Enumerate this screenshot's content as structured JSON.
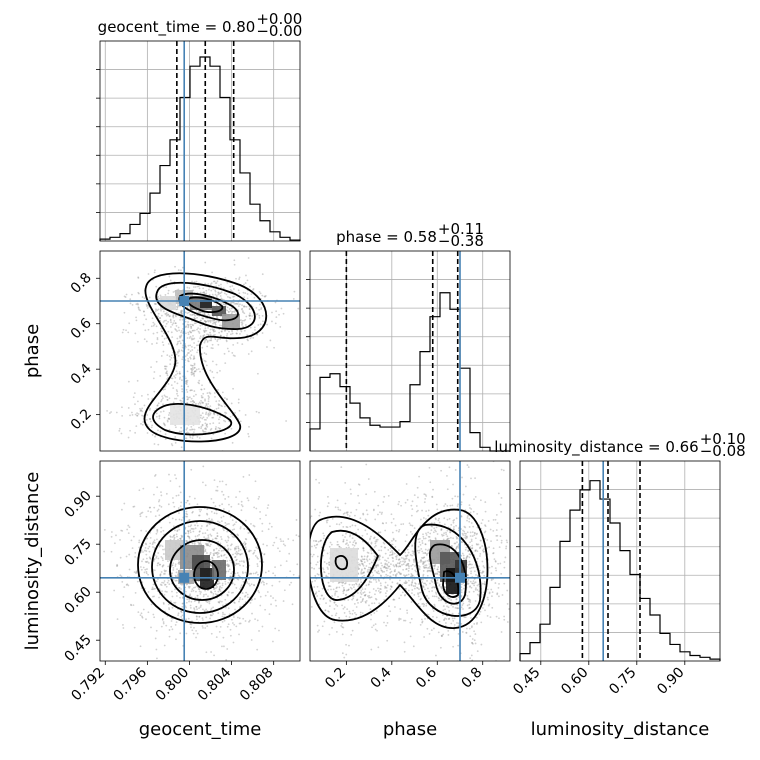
{
  "chart_data": {
    "type": "corner",
    "parameters": [
      "geocent_time",
      "phase",
      "luminosity_distance"
    ],
    "truths": {
      "geocent_time": 0.7995,
      "phase": 0.7,
      "luminosity_distance": 0.645
    },
    "titles": [
      {
        "param": "geocent_time",
        "text": "geocent_time = 0.80",
        "sup": "+0.00",
        "sub": "−0.00"
      },
      {
        "param": "phase",
        "text": "phase = 0.58",
        "sup": "+0.11",
        "sub": "−0.38"
      },
      {
        "param": "luminosity_distance",
        "text": "luminosity_distance = 0.66",
        "sup": "+0.10",
        "sub": "−0.08"
      }
    ],
    "ranges": {
      "geocent_time": [
        0.7915,
        0.8105
      ],
      "phase": [
        0.04,
        0.92
      ],
      "luminosity_distance": [
        0.385,
        1.01
      ]
    },
    "ticks": {
      "geocent_time": [
        "0.792",
        "0.796",
        "0.800",
        "0.804",
        "0.808"
      ],
      "phase_x": [
        "0.2",
        "0.4",
        "0.6",
        "0.8"
      ],
      "phase_y": [
        "0.2",
        "0.4",
        "0.6",
        "0.8"
      ],
      "luminosity_distance": [
        "0.45",
        "0.60",
        "0.75",
        "0.90"
      ]
    },
    "quantiles": {
      "geocent_time": [
        0.7988,
        0.8015,
        0.8042
      ],
      "phase": [
        0.2,
        0.58,
        0.69
      ],
      "luminosity_distance": [
        0.58,
        0.66,
        0.76
      ]
    },
    "histograms": {
      "geocent_time": [
        0.01,
        0.02,
        0.04,
        0.09,
        0.15,
        0.26,
        0.41,
        0.55,
        0.78,
        0.95,
        1.0,
        0.95,
        0.78,
        0.55,
        0.37,
        0.2,
        0.11,
        0.05,
        0.02,
        0.005
      ],
      "phase": [
        0.12,
        0.4,
        0.42,
        0.35,
        0.26,
        0.18,
        0.14,
        0.13,
        0.13,
        0.16,
        0.36,
        0.54,
        0.73,
        0.86,
        0.77,
        0.45,
        0.1,
        0.02,
        0.0,
        0.0
      ],
      "luminosity_distance": [
        0.04,
        0.1,
        0.2,
        0.4,
        0.65,
        0.82,
        0.93,
        0.98,
        0.88,
        0.75,
        0.6,
        0.47,
        0.34,
        0.25,
        0.15,
        0.09,
        0.05,
        0.03,
        0.02,
        0.01
      ]
    },
    "grid": true
  }
}
